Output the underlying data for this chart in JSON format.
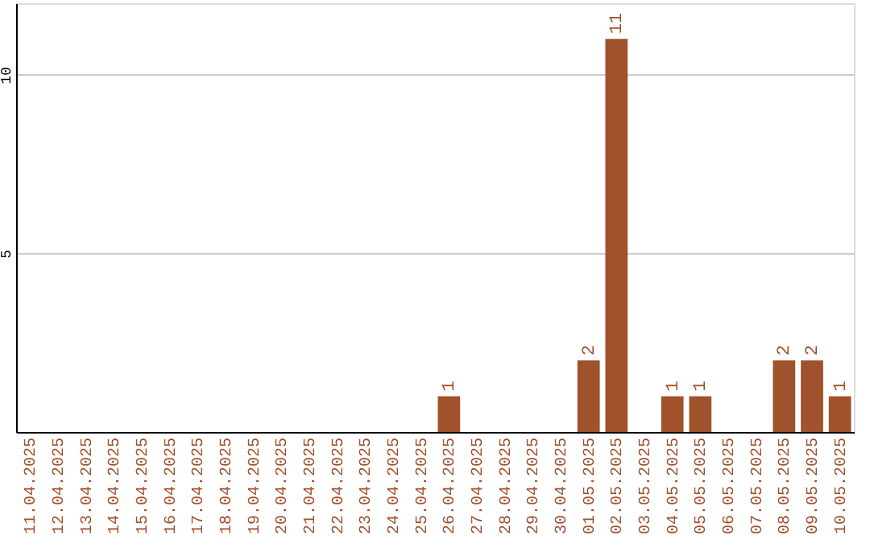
{
  "chart_data": {
    "type": "bar",
    "categories": [
      "11.04.2025",
      "12.04.2025",
      "13.04.2025",
      "14.04.2025",
      "15.04.2025",
      "16.04.2025",
      "17.04.2025",
      "18.04.2025",
      "19.04.2025",
      "20.04.2025",
      "21.04.2025",
      "22.04.2025",
      "23.04.2025",
      "24.04.2025",
      "25.04.2025",
      "26.04.2025",
      "27.04.2025",
      "28.04.2025",
      "29.04.2025",
      "30.04.2025",
      "01.05.2025",
      "02.05.2025",
      "03.05.2025",
      "04.05.2025",
      "05.05.2025",
      "06.05.2025",
      "07.05.2025",
      "08.05.2025",
      "09.05.2025",
      "10.05.2025"
    ],
    "values": [
      0,
      0,
      0,
      0,
      0,
      0,
      0,
      0,
      0,
      0,
      0,
      0,
      0,
      0,
      0,
      1,
      0,
      0,
      0,
      0,
      2,
      11,
      0,
      1,
      1,
      0,
      0,
      2,
      2,
      1
    ],
    "value_labels": [
      null,
      null,
      null,
      null,
      null,
      null,
      null,
      null,
      null,
      null,
      null,
      null,
      null,
      null,
      null,
      "1",
      null,
      null,
      null,
      null,
      "2",
      "11",
      null,
      "1",
      "1",
      null,
      null,
      "2",
      "2",
      "1"
    ],
    "color": "#a0522d",
    "ylim": [
      0,
      12
    ],
    "yticks": [
      5,
      10
    ],
    "grid": "y"
  }
}
